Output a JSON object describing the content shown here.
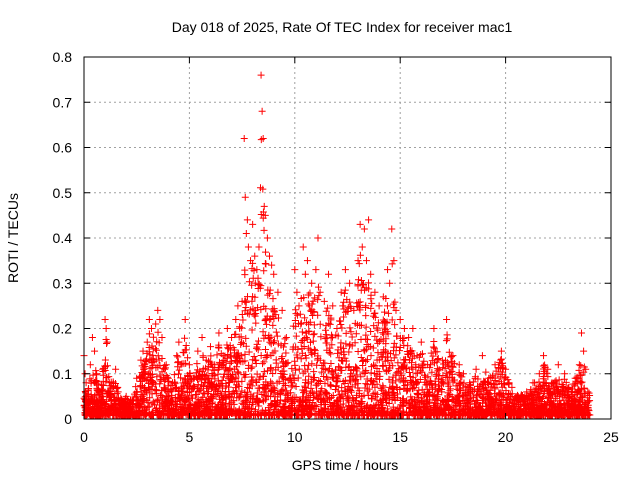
{
  "chart_data": {
    "type": "scatter",
    "title": "Day 018 of 2025, Rate Of TEC Index for receiver mac1",
    "xlabel": "GPS time / hours",
    "ylabel": "ROTI / TECUs",
    "xlim": [
      0,
      25
    ],
    "ylim": [
      0,
      0.8
    ],
    "xticks": [
      "0",
      "5",
      "10",
      "15",
      "20",
      "25"
    ],
    "yticks": [
      "0",
      "0.1",
      "0.2",
      "0.3",
      "0.4",
      "0.5",
      "0.6",
      "0.7",
      "0.8"
    ],
    "grid": true,
    "marker": "plus",
    "color": "#ff0000",
    "series": [
      {
        "points": [
          [
            0.0,
            0.14
          ],
          [
            0.05,
            0.1
          ],
          [
            0.1,
            0.08
          ],
          [
            0.15,
            0.05
          ],
          [
            0.3,
            0.12
          ],
          [
            0.4,
            0.18
          ],
          [
            0.5,
            0.15
          ],
          [
            0.6,
            0.1
          ],
          [
            0.8,
            0.06
          ],
          [
            1.0,
            0.22
          ],
          [
            1.05,
            0.2
          ],
          [
            1.1,
            0.17
          ],
          [
            1.2,
            0.08
          ],
          [
            1.5,
            0.11
          ],
          [
            1.6,
            0.07
          ],
          [
            1.8,
            0.04
          ],
          [
            2.0,
            0.05
          ],
          [
            2.3,
            0.04
          ],
          [
            2.5,
            0.09
          ],
          [
            2.7,
            0.13
          ],
          [
            2.8,
            0.15
          ],
          [
            3.0,
            0.17
          ],
          [
            3.1,
            0.22
          ],
          [
            3.2,
            0.2
          ],
          [
            3.4,
            0.21
          ],
          [
            3.5,
            0.24
          ],
          [
            3.6,
            0.22
          ],
          [
            3.7,
            0.18
          ],
          [
            3.9,
            0.12
          ],
          [
            4.0,
            0.09
          ],
          [
            4.2,
            0.08
          ],
          [
            4.4,
            0.14
          ],
          [
            4.5,
            0.17
          ],
          [
            4.6,
            0.12
          ],
          [
            4.8,
            0.22
          ],
          [
            5.0,
            0.12
          ],
          [
            5.2,
            0.09
          ],
          [
            5.4,
            0.15
          ],
          [
            5.6,
            0.18
          ],
          [
            5.8,
            0.13
          ],
          [
            6.0,
            0.16
          ],
          [
            6.2,
            0.12
          ],
          [
            6.4,
            0.19
          ],
          [
            6.6,
            0.14
          ],
          [
            6.8,
            0.2
          ],
          [
            7.0,
            0.18
          ],
          [
            7.2,
            0.22
          ],
          [
            7.3,
            0.25
          ],
          [
            7.5,
            0.26
          ],
          [
            7.6,
            0.62
          ],
          [
            7.65,
            0.49
          ],
          [
            7.7,
            0.41
          ],
          [
            7.75,
            0.44
          ],
          [
            7.8,
            0.38
          ],
          [
            7.9,
            0.35
          ],
          [
            8.0,
            0.43
          ],
          [
            8.1,
            0.36
          ],
          [
            8.2,
            0.33
          ],
          [
            8.3,
            0.38
          ],
          [
            8.4,
            0.76
          ],
          [
            8.45,
            0.68
          ],
          [
            8.5,
            0.62
          ],
          [
            8.55,
            0.47
          ],
          [
            8.6,
            0.45
          ],
          [
            8.7,
            0.4
          ],
          [
            8.8,
            0.36
          ],
          [
            8.9,
            0.34
          ],
          [
            9.0,
            0.32
          ],
          [
            9.2,
            0.28
          ],
          [
            9.4,
            0.24
          ],
          [
            9.6,
            0.18
          ],
          [
            9.8,
            0.09
          ],
          [
            10.0,
            0.33
          ],
          [
            10.1,
            0.28
          ],
          [
            10.2,
            0.25
          ],
          [
            10.4,
            0.38
          ],
          [
            10.5,
            0.32
          ],
          [
            10.6,
            0.35
          ],
          [
            10.8,
            0.3
          ],
          [
            11.0,
            0.33
          ],
          [
            11.1,
            0.4
          ],
          [
            11.2,
            0.28
          ],
          [
            11.4,
            0.26
          ],
          [
            11.6,
            0.32
          ],
          [
            11.8,
            0.25
          ],
          [
            12.0,
            0.2
          ],
          [
            12.2,
            0.28
          ],
          [
            12.4,
            0.33
          ],
          [
            12.6,
            0.3
          ],
          [
            12.8,
            0.24
          ],
          [
            13.0,
            0.35
          ],
          [
            13.1,
            0.43
          ],
          [
            13.2,
            0.38
          ],
          [
            13.3,
            0.42
          ],
          [
            13.4,
            0.35
          ],
          [
            13.5,
            0.44
          ],
          [
            13.6,
            0.32
          ],
          [
            13.8,
            0.28
          ],
          [
            14.0,
            0.25
          ],
          [
            14.2,
            0.27
          ],
          [
            14.4,
            0.33
          ],
          [
            14.5,
            0.3
          ],
          [
            14.6,
            0.42
          ],
          [
            14.7,
            0.35
          ],
          [
            14.8,
            0.24
          ],
          [
            15.0,
            0.22
          ],
          [
            15.2,
            0.2
          ],
          [
            15.4,
            0.18
          ],
          [
            15.6,
            0.2
          ],
          [
            15.8,
            0.14
          ],
          [
            16.0,
            0.17
          ],
          [
            16.3,
            0.12
          ],
          [
            16.6,
            0.2
          ],
          [
            17.0,
            0.13
          ],
          [
            17.2,
            0.22
          ],
          [
            17.5,
            0.14
          ],
          [
            17.8,
            0.12
          ],
          [
            18.0,
            0.1
          ],
          [
            18.3,
            0.08
          ],
          [
            18.6,
            0.11
          ],
          [
            18.9,
            0.14
          ],
          [
            19.2,
            0.09
          ],
          [
            19.5,
            0.12
          ],
          [
            19.8,
            0.15
          ],
          [
            20.0,
            0.11
          ],
          [
            20.3,
            0.07
          ],
          [
            20.6,
            0.05
          ],
          [
            21.0,
            0.06
          ],
          [
            21.3,
            0.08
          ],
          [
            21.6,
            0.1
          ],
          [
            21.8,
            0.14
          ],
          [
            22.0,
            0.11
          ],
          [
            22.2,
            0.08
          ],
          [
            22.5,
            0.12
          ],
          [
            22.8,
            0.1
          ],
          [
            23.0,
            0.07
          ],
          [
            23.3,
            0.09
          ],
          [
            23.5,
            0.12
          ],
          [
            23.6,
            0.19
          ],
          [
            23.7,
            0.15
          ],
          [
            23.8,
            0.11
          ],
          [
            23.9,
            0.06
          ]
        ]
      }
    ]
  }
}
